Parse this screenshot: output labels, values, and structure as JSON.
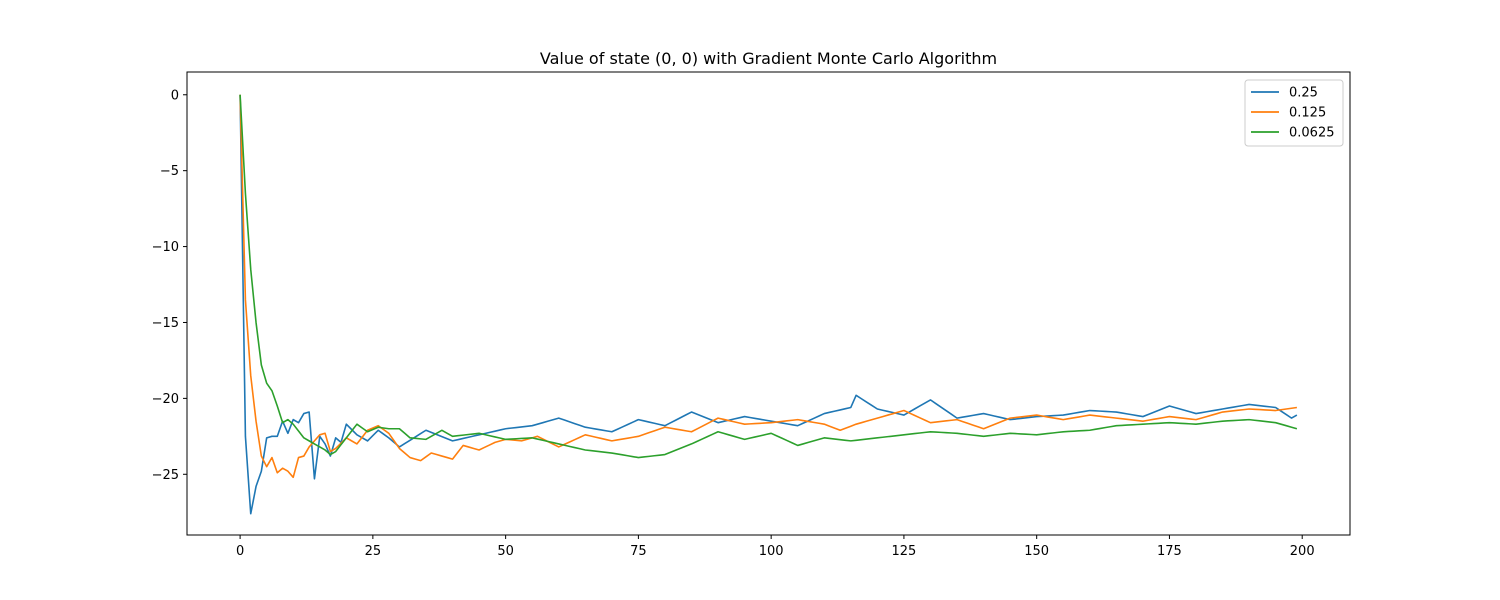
{
  "chart_data": {
    "type": "line",
    "title": "Value of state (0, 0) with Gradient Monte Carlo Algorithm",
    "xlabel": "",
    "ylabel": "",
    "xlim": [
      -10,
      209
    ],
    "ylim": [
      -29,
      1.5
    ],
    "xticks": [
      0,
      25,
      50,
      75,
      100,
      125,
      150,
      175,
      200
    ],
    "xtick_labels": [
      "0",
      "25",
      "50",
      "75",
      "100",
      "125",
      "150",
      "175",
      "200"
    ],
    "yticks": [
      0,
      -5,
      -10,
      -15,
      -20,
      -25
    ],
    "ytick_labels": [
      "0",
      "−5",
      "−10",
      "−15",
      "−20",
      "−25"
    ],
    "grid": false,
    "legend_position": "top-right",
    "series": [
      {
        "name": "0.25",
        "color": "#1f77b4",
        "keypoints": [
          [
            0,
            0
          ],
          [
            1,
            -22.5
          ],
          [
            2,
            -27.6
          ],
          [
            3,
            -25.8
          ],
          [
            4,
            -24.8
          ],
          [
            5,
            -22.6
          ],
          [
            6,
            -22.5
          ],
          [
            7,
            -22.5
          ],
          [
            8,
            -21.5
          ],
          [
            9,
            -22.3
          ],
          [
            10,
            -21.4
          ],
          [
            11,
            -21.6
          ],
          [
            12,
            -21.0
          ],
          [
            13,
            -20.9
          ],
          [
            14,
            -25.3
          ],
          [
            15,
            -22.5
          ],
          [
            16,
            -23.0
          ],
          [
            17,
            -23.8
          ],
          [
            18,
            -22.6
          ],
          [
            19,
            -22.9
          ],
          [
            20,
            -21.7
          ],
          [
            22,
            -22.4
          ],
          [
            24,
            -22.8
          ],
          [
            26,
            -22.1
          ],
          [
            28,
            -22.6
          ],
          [
            30,
            -23.2
          ],
          [
            35,
            -22.1
          ],
          [
            40,
            -22.8
          ],
          [
            45,
            -22.4
          ],
          [
            50,
            -22.0
          ],
          [
            55,
            -21.8
          ],
          [
            60,
            -21.3
          ],
          [
            65,
            -21.9
          ],
          [
            70,
            -22.2
          ],
          [
            75,
            -21.4
          ],
          [
            80,
            -21.8
          ],
          [
            85,
            -20.9
          ],
          [
            90,
            -21.6
          ],
          [
            95,
            -21.2
          ],
          [
            100,
            -21.5
          ],
          [
            105,
            -21.8
          ],
          [
            110,
            -21.0
          ],
          [
            115,
            -20.6
          ],
          [
            116,
            -19.8
          ],
          [
            120,
            -20.7
          ],
          [
            125,
            -21.1
          ],
          [
            130,
            -20.1
          ],
          [
            135,
            -21.3
          ],
          [
            140,
            -21.0
          ],
          [
            145,
            -21.4
          ],
          [
            150,
            -21.2
          ],
          [
            155,
            -21.1
          ],
          [
            160,
            -20.8
          ],
          [
            165,
            -20.9
          ],
          [
            170,
            -21.2
          ],
          [
            175,
            -20.5
          ],
          [
            180,
            -21.0
          ],
          [
            185,
            -20.7
          ],
          [
            190,
            -20.4
          ],
          [
            195,
            -20.6
          ],
          [
            198,
            -21.3
          ],
          [
            199,
            -21.1
          ]
        ]
      },
      {
        "name": "0.125",
        "color": "#ff7f0e",
        "keypoints": [
          [
            0,
            0
          ],
          [
            1,
            -13.5
          ],
          [
            2,
            -18.5
          ],
          [
            3,
            -21.5
          ],
          [
            4,
            -23.8
          ],
          [
            5,
            -24.5
          ],
          [
            6,
            -23.9
          ],
          [
            7,
            -24.9
          ],
          [
            8,
            -24.6
          ],
          [
            9,
            -24.8
          ],
          [
            10,
            -25.2
          ],
          [
            11,
            -23.9
          ],
          [
            12,
            -23.8
          ],
          [
            13,
            -23.2
          ],
          [
            14,
            -22.8
          ],
          [
            15,
            -22.4
          ],
          [
            16,
            -22.3
          ],
          [
            17,
            -23.5
          ],
          [
            18,
            -23.3
          ],
          [
            20,
            -22.6
          ],
          [
            22,
            -23.0
          ],
          [
            24,
            -22.1
          ],
          [
            26,
            -21.8
          ],
          [
            28,
            -22.3
          ],
          [
            30,
            -23.3
          ],
          [
            32,
            -23.9
          ],
          [
            34,
            -24.1
          ],
          [
            36,
            -23.6
          ],
          [
            38,
            -23.8
          ],
          [
            40,
            -24.0
          ],
          [
            42,
            -23.1
          ],
          [
            45,
            -23.4
          ],
          [
            48,
            -22.9
          ],
          [
            50,
            -22.7
          ],
          [
            53,
            -22.8
          ],
          [
            56,
            -22.5
          ],
          [
            60,
            -23.2
          ],
          [
            65,
            -22.4
          ],
          [
            70,
            -22.8
          ],
          [
            75,
            -22.5
          ],
          [
            80,
            -21.9
          ],
          [
            85,
            -22.2
          ],
          [
            90,
            -21.3
          ],
          [
            95,
            -21.7
          ],
          [
            100,
            -21.6
          ],
          [
            105,
            -21.4
          ],
          [
            110,
            -21.7
          ],
          [
            113,
            -22.1
          ],
          [
            116,
            -21.7
          ],
          [
            120,
            -21.3
          ],
          [
            125,
            -20.8
          ],
          [
            130,
            -21.6
          ],
          [
            135,
            -21.4
          ],
          [
            140,
            -22.0
          ],
          [
            145,
            -21.3
          ],
          [
            150,
            -21.1
          ],
          [
            155,
            -21.4
          ],
          [
            160,
            -21.1
          ],
          [
            165,
            -21.3
          ],
          [
            170,
            -21.5
          ],
          [
            175,
            -21.2
          ],
          [
            180,
            -21.4
          ],
          [
            185,
            -20.9
          ],
          [
            190,
            -20.7
          ],
          [
            195,
            -20.8
          ],
          [
            199,
            -20.6
          ]
        ]
      },
      {
        "name": "0.0625",
        "color": "#2ca02c",
        "keypoints": [
          [
            0,
            0
          ],
          [
            1,
            -6.5
          ],
          [
            2,
            -11.5
          ],
          [
            3,
            -15.0
          ],
          [
            4,
            -17.8
          ],
          [
            5,
            -19.0
          ],
          [
            6,
            -19.5
          ],
          [
            7,
            -20.5
          ],
          [
            8,
            -21.6
          ],
          [
            9,
            -21.4
          ],
          [
            10,
            -21.7
          ],
          [
            12,
            -22.6
          ],
          [
            14,
            -23.0
          ],
          [
            16,
            -23.4
          ],
          [
            17,
            -23.7
          ],
          [
            18,
            -23.5
          ],
          [
            20,
            -22.6
          ],
          [
            22,
            -21.7
          ],
          [
            24,
            -22.2
          ],
          [
            26,
            -21.9
          ],
          [
            28,
            -22.0
          ],
          [
            30,
            -22.0
          ],
          [
            32,
            -22.6
          ],
          [
            35,
            -22.7
          ],
          [
            38,
            -22.1
          ],
          [
            40,
            -22.5
          ],
          [
            45,
            -22.3
          ],
          [
            50,
            -22.7
          ],
          [
            55,
            -22.6
          ],
          [
            60,
            -23.0
          ],
          [
            65,
            -23.4
          ],
          [
            70,
            -23.6
          ],
          [
            75,
            -23.9
          ],
          [
            80,
            -23.7
          ],
          [
            85,
            -23.0
          ],
          [
            90,
            -22.2
          ],
          [
            95,
            -22.7
          ],
          [
            100,
            -22.3
          ],
          [
            105,
            -23.1
          ],
          [
            110,
            -22.6
          ],
          [
            115,
            -22.8
          ],
          [
            120,
            -22.6
          ],
          [
            125,
            -22.4
          ],
          [
            130,
            -22.2
          ],
          [
            135,
            -22.3
          ],
          [
            140,
            -22.5
          ],
          [
            145,
            -22.3
          ],
          [
            150,
            -22.4
          ],
          [
            155,
            -22.2
          ],
          [
            160,
            -22.1
          ],
          [
            165,
            -21.8
          ],
          [
            170,
            -21.7
          ],
          [
            175,
            -21.6
          ],
          [
            180,
            -21.7
          ],
          [
            185,
            -21.5
          ],
          [
            190,
            -21.4
          ],
          [
            195,
            -21.6
          ],
          [
            199,
            -22.0
          ]
        ]
      }
    ]
  }
}
